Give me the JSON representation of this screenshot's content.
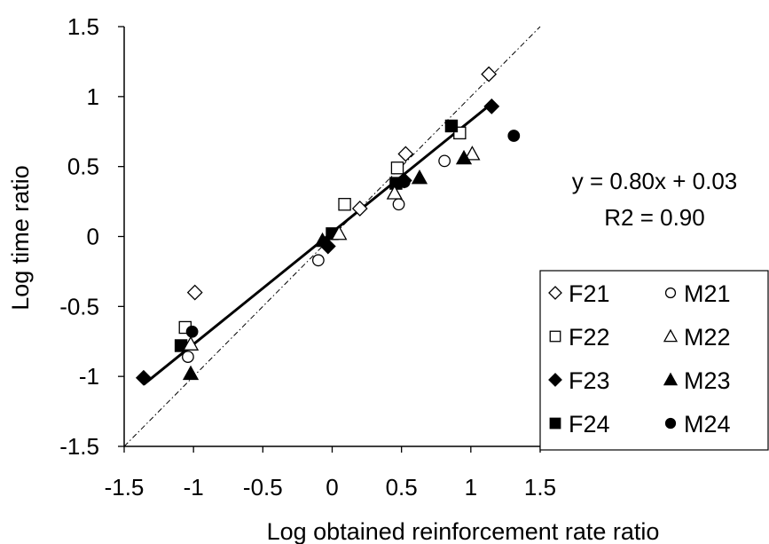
{
  "chart_data": {
    "type": "scatter",
    "xlabel": "Log obtained reinforcement rate ratio",
    "ylabel": "Log time ratio",
    "xlim": [
      -1.5,
      1.5
    ],
    "ylim": [
      -1.5,
      1.5
    ],
    "x_ticks": [
      "-1.5",
      "-1",
      "-0.5",
      "0",
      "0.5",
      "1",
      "1.5"
    ],
    "y_ticks": [
      "-1.5",
      "-1",
      "-0.5",
      "0",
      "0.5",
      "1",
      "1.5"
    ],
    "grid": false,
    "legend_position": "bottom-right",
    "annotation": [
      "y = 0.80x + 0.03",
      "R2 = 0.90"
    ],
    "reference_line": {
      "style": "dash-dot",
      "x": [
        -1.5,
        1.5
      ],
      "y": [
        -1.5,
        1.5
      ]
    },
    "fit_line": {
      "slope": 0.8,
      "intercept": 0.03,
      "x": [
        -1.36,
        1.14
      ]
    },
    "series": [
      {
        "name": "F21",
        "marker": "diamond-open",
        "points": [
          [
            -0.99,
            -0.4
          ],
          [
            0.2,
            0.2
          ],
          [
            0.53,
            0.59
          ],
          [
            1.13,
            1.16
          ]
        ]
      },
      {
        "name": "F22",
        "marker": "square-open",
        "points": [
          [
            -1.06,
            -0.65
          ],
          [
            0.09,
            0.23
          ],
          [
            0.47,
            0.49
          ],
          [
            0.92,
            0.74
          ]
        ]
      },
      {
        "name": "F23",
        "marker": "diamond-filled",
        "points": [
          [
            -1.36,
            -1.01
          ],
          [
            -0.03,
            -0.07
          ],
          [
            0.52,
            0.4
          ],
          [
            1.15,
            0.93
          ]
        ]
      },
      {
        "name": "F24",
        "marker": "square-filled",
        "points": [
          [
            -1.09,
            -0.78
          ],
          [
            0.0,
            0.02
          ],
          [
            0.46,
            0.38
          ],
          [
            0.86,
            0.79
          ]
        ]
      },
      {
        "name": "M21",
        "marker": "circle-open",
        "points": [
          [
            -1.04,
            -0.86
          ],
          [
            -0.1,
            -0.17
          ],
          [
            0.48,
            0.23
          ],
          [
            0.81,
            0.54
          ]
        ]
      },
      {
        "name": "M22",
        "marker": "triangle-open",
        "points": [
          [
            -1.02,
            -0.77
          ],
          [
            0.05,
            0.02
          ],
          [
            0.45,
            0.31
          ],
          [
            1.01,
            0.59
          ]
        ]
      },
      {
        "name": "M23",
        "marker": "triangle-filled",
        "points": [
          [
            -1.02,
            -0.98
          ],
          [
            -0.07,
            -0.03
          ],
          [
            0.63,
            0.42
          ],
          [
            0.95,
            0.56
          ]
        ]
      },
      {
        "name": "M24",
        "marker": "circle-filled",
        "points": [
          [
            -1.01,
            -0.68
          ],
          [
            0.52,
            0.39
          ],
          [
            1.31,
            0.72
          ]
        ]
      }
    ]
  }
}
